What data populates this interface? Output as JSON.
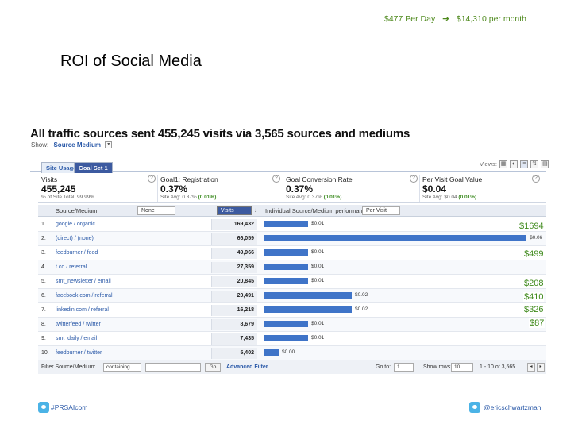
{
  "banner": {
    "daily": "$477 Per Day",
    "arrow": "➔",
    "monthly": "$14,310 per month"
  },
  "slide_title": "ROI of Social Media",
  "ga": {
    "heading": "All traffic sources sent 455,245 visits via 3,565 sources and mediums",
    "show_label": "Show:",
    "show_value": "Source Medium",
    "tabs": [
      "Site Usage",
      "Goal Set 1"
    ],
    "views_label": "Views:",
    "metrics": [
      {
        "label": "Visits",
        "value": "455,245",
        "sub_prefix": "% of Site Total: 99.99%",
        "sub_green": ""
      },
      {
        "label": "Goal1: Registration",
        "value": "0.37%",
        "sub_prefix": "Site Avg: 0.37%",
        "sub_green": "(0.01%)"
      },
      {
        "label": "Goal Conversion Rate",
        "value": "0.37%",
        "sub_prefix": "Site Avg: 0.37%",
        "sub_green": "(0.01%)"
      },
      {
        "label": "Per Visit Goal Value",
        "value": "$0.04",
        "sub_prefix": "Site Avg: $0.04",
        "sub_green": "(0.01%)"
      }
    ],
    "table_header": {
      "source": "Source/Medium",
      "none": "None",
      "visits": "Visits",
      "performance": "Individual Source/Medium performance:",
      "per_visit": "Per Visit"
    },
    "rows": [
      {
        "num": "1.",
        "source": "google / organic",
        "visits": "169,432",
        "value": "$0.01",
        "fraction": 0.0
      },
      {
        "num": "2.",
        "source": "(direct) / (none)",
        "visits": "66,059",
        "value": "$0.06",
        "fraction": 1.0
      },
      {
        "num": "3.",
        "source": "feedburner / feed",
        "visits": "49,966",
        "value": "$0.01",
        "fraction": 0.0
      },
      {
        "num": "4.",
        "source": "t.co / referral",
        "visits": "27,359",
        "value": "$0.01",
        "fraction": 0.0
      },
      {
        "num": "5.",
        "source": "smt_newsletter / email",
        "visits": "20,845",
        "value": "$0.01",
        "fraction": 0.0
      },
      {
        "num": "6.",
        "source": "facebook.com / referral",
        "visits": "20,491",
        "value": "$0.02",
        "fraction": 0.0
      },
      {
        "num": "7.",
        "source": "linkedin.com / referral",
        "visits": "16,218",
        "value": "$0.02",
        "fraction": 0.0
      },
      {
        "num": "8.",
        "source": "twitterfeed / twitter",
        "visits": "8,679",
        "value": "$0.01",
        "fraction": 0.0
      },
      {
        "num": "9.",
        "source": "smt_daily / email",
        "visits": "7,435",
        "value": "$0.01",
        "fraction": 0.0
      },
      {
        "num": "10.",
        "source": "feedburner / twitter",
        "visits": "5,402",
        "value": "$0.00",
        "fraction": 0.0
      }
    ],
    "filter": {
      "label": "Filter Source/Medium:",
      "mode": "containing",
      "go": "Go",
      "advanced": "Advanced Filter",
      "goto_label": "Go to:",
      "goto_value": "1",
      "show_rows_label": "Show rows:",
      "show_rows_value": "10",
      "range": "1 - 10 of 3,565"
    }
  },
  "roi_annotations": [
    "$1694",
    "$499",
    "$208",
    "$410",
    "$326",
    "$87"
  ],
  "footer": {
    "left": "#PRSAIcom",
    "right": "@ericschwartzman"
  },
  "colors": {
    "accent_green": "#3f8a1c",
    "bar_blue": "#3f74c8",
    "link_blue": "#2a59a8"
  }
}
